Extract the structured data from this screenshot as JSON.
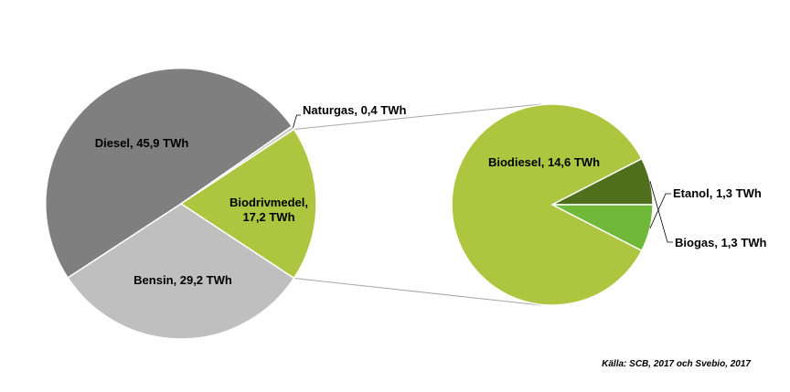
{
  "chart_data": {
    "type": "pie",
    "main": {
      "slices": [
        {
          "name": "Diesel",
          "value": 45.9,
          "label": "Diesel, 45,9 TWh",
          "color": "#7f7f7f"
        },
        {
          "name": "Naturgas",
          "value": 0.4,
          "label": "Naturgas, 0,4 TWh",
          "color": "#c9c9c9"
        },
        {
          "name": "Biodrivmedel",
          "value": 17.2,
          "label_lines": [
            "Biodrivmedel,",
            "17,2 TWh"
          ],
          "color": "#aec540"
        },
        {
          "name": "Bensin",
          "value": 29.2,
          "label": "Bensin, 29,2 TWh",
          "color": "#bfbfbf"
        }
      ]
    },
    "breakdown": {
      "of": "Biodrivmedel",
      "slices": [
        {
          "name": "Biodiesel",
          "value": 14.6,
          "label": "Biodiesel, 14,6 TWh",
          "color": "#aec540"
        },
        {
          "name": "Biogas",
          "value": 1.3,
          "label": "Biogas, 1,3 TWh",
          "color": "#4f6f1c"
        },
        {
          "name": "Etanol",
          "value": 1.3,
          "label": "Etanol, 1,3 TWh",
          "color": "#70b83a"
        }
      ]
    },
    "source": "Källa: SCB, 2017 och Svebio, 2017"
  }
}
